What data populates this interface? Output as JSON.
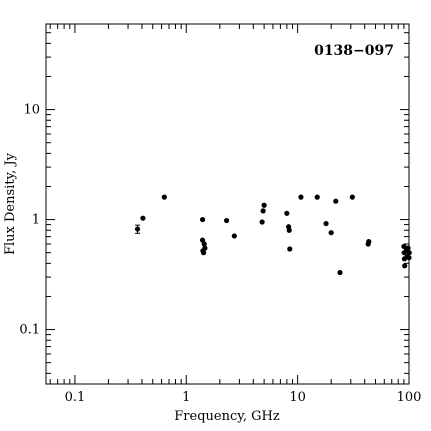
{
  "chart_data": {
    "type": "scatter",
    "title": "",
    "annotation": "0138−097",
    "xlabel": "Frequency, GHz",
    "ylabel": "Flux Density, Jy",
    "xscale": "log",
    "yscale": "log",
    "xlim": [
      0.055,
      100
    ],
    "ylim": [
      0.032,
      60
    ],
    "x_tick_labels": [
      {
        "value": 0.1,
        "label": "0.1"
      },
      {
        "value": 1,
        "label": "1"
      },
      {
        "value": 10,
        "label": "10"
      },
      {
        "value": 100,
        "label": "100"
      }
    ],
    "y_tick_labels": [
      {
        "value": 0.1,
        "label": "0.1"
      },
      {
        "value": 1,
        "label": "1"
      },
      {
        "value": 10,
        "label": "10"
      }
    ],
    "grid": false,
    "legend": "none",
    "marker_color": "#000000",
    "points": [
      {
        "x": 0.365,
        "y": 0.82,
        "err": 0.07
      },
      {
        "x": 0.408,
        "y": 1.03
      },
      {
        "x": 0.635,
        "y": 1.6
      },
      {
        "x": 1.4,
        "y": 1.0
      },
      {
        "x": 1.4,
        "y": 0.65
      },
      {
        "x": 1.41,
        "y": 0.52
      },
      {
        "x": 1.43,
        "y": 0.5
      },
      {
        "x": 1.45,
        "y": 0.6
      },
      {
        "x": 1.47,
        "y": 0.55
      },
      {
        "x": 2.3,
        "y": 0.98
      },
      {
        "x": 2.7,
        "y": 0.71
      },
      {
        "x": 4.8,
        "y": 0.95
      },
      {
        "x": 4.9,
        "y": 1.2
      },
      {
        "x": 5.0,
        "y": 1.35
      },
      {
        "x": 8.0,
        "y": 1.14
      },
      {
        "x": 8.3,
        "y": 0.86
      },
      {
        "x": 8.4,
        "y": 0.8
      },
      {
        "x": 8.5,
        "y": 0.54
      },
      {
        "x": 10.7,
        "y": 1.6
      },
      {
        "x": 15.0,
        "y": 1.6
      },
      {
        "x": 18.0,
        "y": 0.92
      },
      {
        "x": 20.0,
        "y": 0.76
      },
      {
        "x": 22.0,
        "y": 1.47
      },
      {
        "x": 24.0,
        "y": 0.33
      },
      {
        "x": 31.0,
        "y": 1.6
      },
      {
        "x": 43.0,
        "y": 0.6
      },
      {
        "x": 43.5,
        "y": 0.63
      },
      {
        "x": 90.0,
        "y": 0.57
      },
      {
        "x": 90.5,
        "y": 0.5
      },
      {
        "x": 91.0,
        "y": 0.44
      },
      {
        "x": 91.5,
        "y": 0.38
      },
      {
        "x": 95.0,
        "y": 0.53
      },
      {
        "x": 96.0,
        "y": 0.46
      },
      {
        "x": 98.0,
        "y": 0.55
      },
      {
        "x": 100.0,
        "y": 0.45
      },
      {
        "x": 100.5,
        "y": 0.5
      }
    ]
  }
}
